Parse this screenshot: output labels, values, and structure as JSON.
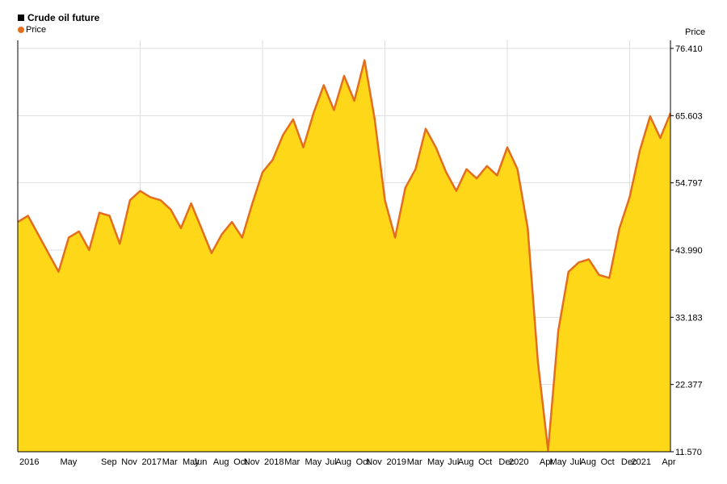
{
  "chart_data": {
    "type": "area",
    "title": "Crude oil future",
    "legend": [
      {
        "name": "Price",
        "color": "#e36f1e"
      }
    ],
    "ylabel": "Price",
    "ylim": [
      11.57,
      76.41
    ],
    "y_ticks": [
      "11.570",
      "22.377",
      "33.183",
      "43.990",
      "54.797",
      "65.603",
      "76.410"
    ],
    "x_ticks": [
      {
        "label": "2016",
        "x": "2016-01"
      },
      {
        "label": "May",
        "x": "2016-05"
      },
      {
        "label": "Sep",
        "x": "2016-09"
      },
      {
        "label": "Nov",
        "x": "2016-11"
      },
      {
        "label": "2017",
        "x": "2017-01"
      },
      {
        "label": "Mar",
        "x": "2017-03"
      },
      {
        "label": "May",
        "x": "2017-05"
      },
      {
        "label": "Jun",
        "x": "2017-06"
      },
      {
        "label": "Aug",
        "x": "2017-08"
      },
      {
        "label": "Oct",
        "x": "2017-10"
      },
      {
        "label": "Nov",
        "x": "2017-11"
      },
      {
        "label": "2018",
        "x": "2018-01"
      },
      {
        "label": "Mar",
        "x": "2018-03"
      },
      {
        "label": "May",
        "x": "2018-05"
      },
      {
        "label": "Jul",
        "x": "2018-07"
      },
      {
        "label": "Aug",
        "x": "2018-08"
      },
      {
        "label": "Oct",
        "x": "2018-10"
      },
      {
        "label": "Nov",
        "x": "2018-11"
      },
      {
        "label": "2019",
        "x": "2019-01"
      },
      {
        "label": "Mar",
        "x": "2019-03"
      },
      {
        "label": "May",
        "x": "2019-05"
      },
      {
        "label": "Jul",
        "x": "2019-07"
      },
      {
        "label": "Aug",
        "x": "2019-08"
      },
      {
        "label": "Oct",
        "x": "2019-10"
      },
      {
        "label": "Dec",
        "x": "2019-12"
      },
      {
        "label": "2020",
        "x": "2020-01"
      },
      {
        "label": "Apr",
        "x": "2020-04"
      },
      {
        "label": "May",
        "x": "2020-05"
      },
      {
        "label": "Jul",
        "x": "2020-07"
      },
      {
        "label": "Aug",
        "x": "2020-08"
      },
      {
        "label": "Oct",
        "x": "2020-10"
      },
      {
        "label": "Dec",
        "x": "2020-12"
      },
      {
        "label": "2021",
        "x": "2021-01"
      },
      {
        "label": "Apr",
        "x": "2021-04"
      }
    ],
    "year_gridlines": [
      "2017-01",
      "2018-01",
      "2019-01",
      "2020-01",
      "2021-01"
    ],
    "grid": true,
    "legend_position": "top-left",
    "y_axis_position": "right",
    "series": [
      {
        "name": "Price",
        "x": [
          "2016-01",
          "2016-02",
          "2016-03",
          "2016-04",
          "2016-05",
          "2016-06",
          "2016-07",
          "2016-08",
          "2016-09",
          "2016-10",
          "2016-11",
          "2016-12",
          "2017-01",
          "2017-02",
          "2017-03",
          "2017-04",
          "2017-05",
          "2017-06",
          "2017-07",
          "2017-08",
          "2017-09",
          "2017-10",
          "2017-11",
          "2017-12",
          "2018-01",
          "2018-02",
          "2018-03",
          "2018-04",
          "2018-05",
          "2018-06",
          "2018-07",
          "2018-08",
          "2018-09",
          "2018-10",
          "2018-11",
          "2018-12",
          "2019-01",
          "2019-02",
          "2019-03",
          "2019-04",
          "2019-05",
          "2019-06",
          "2019-07",
          "2019-08",
          "2019-09",
          "2019-10",
          "2019-11",
          "2019-12",
          "2020-01",
          "2020-02",
          "2020-03",
          "2020-04",
          "2020-05",
          "2020-06",
          "2020-07",
          "2020-08",
          "2020-09",
          "2020-10",
          "2020-11",
          "2020-12",
          "2021-01",
          "2021-02",
          "2021-03",
          "2021-04",
          "2021-05"
        ],
        "y": [
          48.5,
          49.5,
          46.5,
          43.5,
          40.5,
          46.0,
          47.0,
          44.0,
          50.0,
          49.5,
          45.0,
          52.0,
          53.5,
          52.5,
          52.0,
          50.5,
          47.5,
          51.5,
          47.5,
          43.5,
          46.5,
          48.5,
          46.0,
          51.5,
          56.5,
          58.5,
          62.5,
          65.0,
          60.5,
          66.0,
          70.5,
          66.5,
          72.0,
          68.0,
          74.5,
          65.0,
          52.0,
          46.0,
          54.0,
          57.0,
          63.5,
          60.5,
          56.5,
          53.5,
          57.0,
          55.5,
          57.5,
          56.0,
          60.5,
          57.0,
          47.5,
          26.0,
          11.8,
          31.0,
          40.5,
          42.0,
          42.5,
          40.0,
          39.5,
          47.5,
          52.5,
          60.0,
          65.5,
          62.0,
          66.0
        ]
      }
    ]
  }
}
